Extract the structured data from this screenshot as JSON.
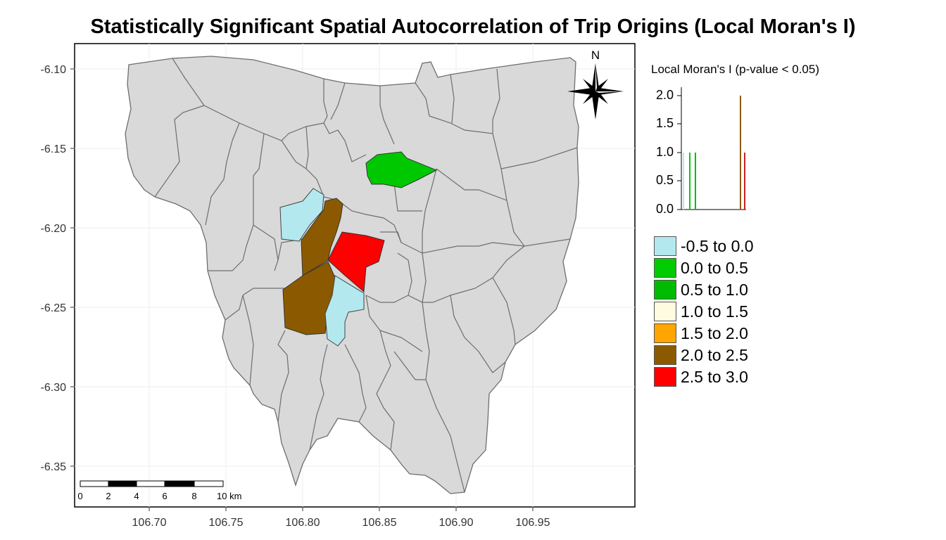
{
  "title": "Statistically Significant Spatial Autocorrelation of Trip Origins (Local Moran's I)",
  "axes": {
    "y_ticks": [
      "-6.10",
      "-6.15",
      "-6.20",
      "-6.25",
      "-6.30",
      "-6.35"
    ],
    "x_ticks": [
      "106.70",
      "106.75",
      "106.80",
      "106.85",
      "106.90",
      "106.95"
    ]
  },
  "north_arrow": {
    "label": "N"
  },
  "scale_bar": {
    "labels": [
      "0",
      "2",
      "4",
      "6",
      "8",
      "10 km"
    ]
  },
  "legend": {
    "title": "Local Moran's I (p-value < 0.05)",
    "histogram_y_ticks": [
      "2.0",
      "1.5",
      "1.0",
      "0.5",
      "0.0"
    ],
    "items": [
      {
        "label": "-0.5 to 0.0",
        "color": "#b4e8ef"
      },
      {
        "label": "0.0 to 0.5",
        "color": "#00cc00"
      },
      {
        "label": "0.5 to 1.0",
        "color": "#00bb00"
      },
      {
        "label": "1.0 to 1.5",
        "color": "#fffbe0"
      },
      {
        "label": "1.5 to 2.0",
        "color": "#ffa500"
      },
      {
        "label": "2.0 to 2.5",
        "color": "#8b5a00"
      },
      {
        "label": "2.5 to 3.0",
        "color": "#ff0000"
      }
    ]
  },
  "colors": {
    "base_district": "#d9d9d9",
    "border": "#6e6e6e"
  }
}
